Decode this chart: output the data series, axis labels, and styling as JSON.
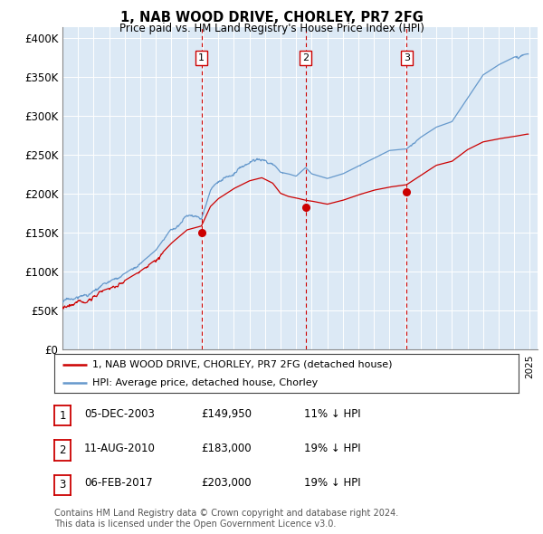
{
  "title": "1, NAB WOOD DRIVE, CHORLEY, PR7 2FG",
  "subtitle": "Price paid vs. HM Land Registry's House Price Index (HPI)",
  "plot_bg_color": "#dce9f5",
  "yticks": [
    0,
    50000,
    100000,
    150000,
    200000,
    250000,
    300000,
    350000,
    400000
  ],
  "ytick_labels": [
    "£0",
    "£50K",
    "£100K",
    "£150K",
    "£200K",
    "£250K",
    "£300K",
    "£350K",
    "£400K"
  ],
  "legend_label_red": "1, NAB WOOD DRIVE, CHORLEY, PR7 2FG (detached house)",
  "legend_label_blue": "HPI: Average price, detached house, Chorley",
  "red_color": "#cc0000",
  "blue_color": "#6699cc",
  "sale_dates": [
    2003.92,
    2010.61,
    2017.09
  ],
  "sale_prices": [
    149950,
    183000,
    203000
  ],
  "sale_labels": [
    "1",
    "2",
    "3"
  ],
  "table_rows": [
    [
      "1",
      "05-DEC-2003",
      "£149,950",
      "11% ↓ HPI"
    ],
    [
      "2",
      "11-AUG-2010",
      "£183,000",
      "19% ↓ HPI"
    ],
    [
      "3",
      "06-FEB-2017",
      "£203,000",
      "19% ↓ HPI"
    ]
  ],
  "footer_text": "Contains HM Land Registry data © Crown copyright and database right 2024.\nThis data is licensed under the Open Government Licence v3.0.",
  "xmin": 1995.0,
  "xmax": 2025.5,
  "ylim": [
    0,
    415000
  ]
}
